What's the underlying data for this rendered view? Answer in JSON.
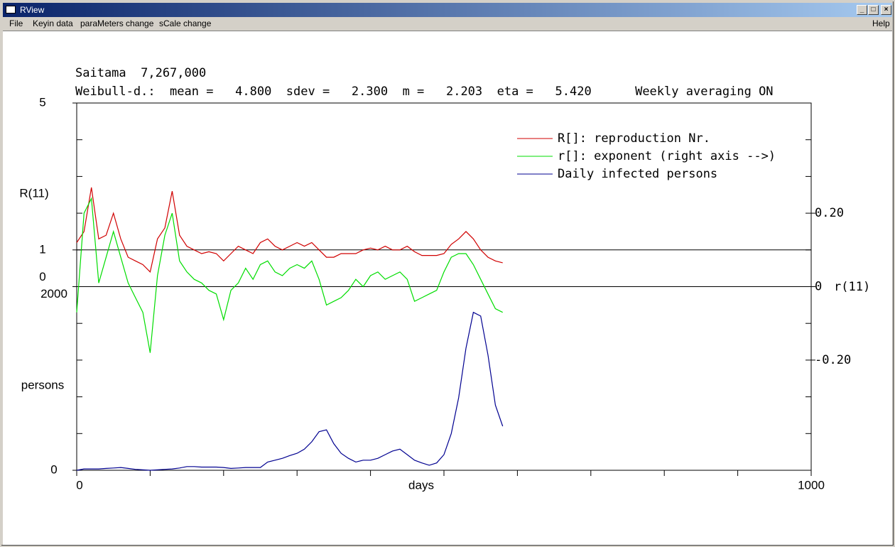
{
  "window": {
    "title": "RView"
  },
  "menu": [
    "File",
    "Keyin data",
    "paraMeters change",
    "sCale change"
  ],
  "help_menu": "Help",
  "chart_data": {
    "type": "line",
    "title": "Saitama  7,267,000",
    "subtitle": "Weibull-d.:  mean =   4.800  sdev =   2.300  m =   2.203  eta =   5.420      Weekly averaging ON",
    "xlabel": "days",
    "ylabel": "R(11)",
    "y2label": "r(11)",
    "y3label": "persons",
    "xlim": [
      0,
      1000
    ],
    "xticks": [
      0,
      1000
    ],
    "ylim": [
      -5,
      5
    ],
    "yticks": [
      0,
      1,
      5
    ],
    "y2lim": [
      -0.5,
      0.5
    ],
    "y2ticks": [
      {
        "value": 0.2,
        "label": "0.20"
      },
      {
        "value": 0,
        "label": "0"
      },
      {
        "value": -0.2,
        "label": "-0.20"
      }
    ],
    "y3lim": [
      0,
      4000
    ],
    "y3ticks": [
      0,
      2000
    ],
    "hlines": [
      1,
      0
    ],
    "legend": "upper right",
    "x": [
      0,
      10,
      20,
      30,
      40,
      50,
      60,
      70,
      80,
      90,
      100,
      110,
      120,
      130,
      140,
      150,
      160,
      170,
      180,
      190,
      200,
      210,
      220,
      230,
      240,
      250,
      260,
      270,
      280,
      290,
      300,
      310,
      320,
      330,
      340,
      350,
      360,
      370,
      380,
      390,
      400,
      410,
      420,
      430,
      440,
      450,
      460,
      470,
      480,
      490,
      500,
      510,
      520,
      530,
      540,
      550,
      560,
      570,
      580
    ],
    "series": [
      {
        "name": "R[]: reproduction Nr.",
        "color": "#d00000",
        "axis": "y",
        "values": [
          1.2,
          1.5,
          2.7,
          1.3,
          1.4,
          2.0,
          1.3,
          0.8,
          0.7,
          0.6,
          0.4,
          1.3,
          1.6,
          2.6,
          1.4,
          1.1,
          1.0,
          0.9,
          0.95,
          0.9,
          0.7,
          0.9,
          1.1,
          1.0,
          0.9,
          1.2,
          1.3,
          1.1,
          1.0,
          1.1,
          1.2,
          1.1,
          1.2,
          1.0,
          0.8,
          0.8,
          0.9,
          0.9,
          0.9,
          1.0,
          1.05,
          1.0,
          1.1,
          1.0,
          1.0,
          1.1,
          0.95,
          0.85,
          0.85,
          0.85,
          0.9,
          1.15,
          1.3,
          1.5,
          1.3,
          1.0,
          0.8,
          0.7,
          0.65
        ]
      },
      {
        "name": "r[]: exponent (right axis -->)",
        "color": "#00dd00",
        "axis": "y2",
        "values": [
          -0.07,
          0.2,
          0.24,
          0.01,
          0.08,
          0.15,
          0.08,
          0.01,
          -0.03,
          -0.07,
          -0.18,
          0.03,
          0.14,
          0.2,
          0.07,
          0.04,
          0.02,
          0.01,
          -0.01,
          -0.02,
          -0.09,
          -0.01,
          0.01,
          0.05,
          0.02,
          0.06,
          0.07,
          0.04,
          0.03,
          0.05,
          0.06,
          0.05,
          0.07,
          0.02,
          -0.05,
          -0.04,
          -0.03,
          -0.01,
          0.02,
          0,
          0.03,
          0.04,
          0.02,
          0.03,
          0.04,
          0.02,
          -0.04,
          -0.03,
          -0.02,
          -0.01,
          0.04,
          0.08,
          0.09,
          0.09,
          0.06,
          0.02,
          -0.02,
          -0.06,
          -0.07
        ]
      },
      {
        "name": "Daily infected persons",
        "color": "#000090",
        "axis": "y3",
        "values": [
          0,
          15,
          15,
          15,
          20,
          25,
          30,
          20,
          10,
          5,
          0,
          5,
          10,
          15,
          25,
          40,
          40,
          35,
          35,
          35,
          30,
          20,
          25,
          30,
          30,
          30,
          90,
          110,
          130,
          160,
          185,
          230,
          310,
          420,
          440,
          290,
          185,
          130,
          90,
          110,
          110,
          130,
          170,
          210,
          230,
          170,
          110,
          80,
          55,
          80,
          170,
          400,
          790,
          1330,
          1720,
          1680,
          1255,
          710,
          480
        ]
      }
    ]
  }
}
